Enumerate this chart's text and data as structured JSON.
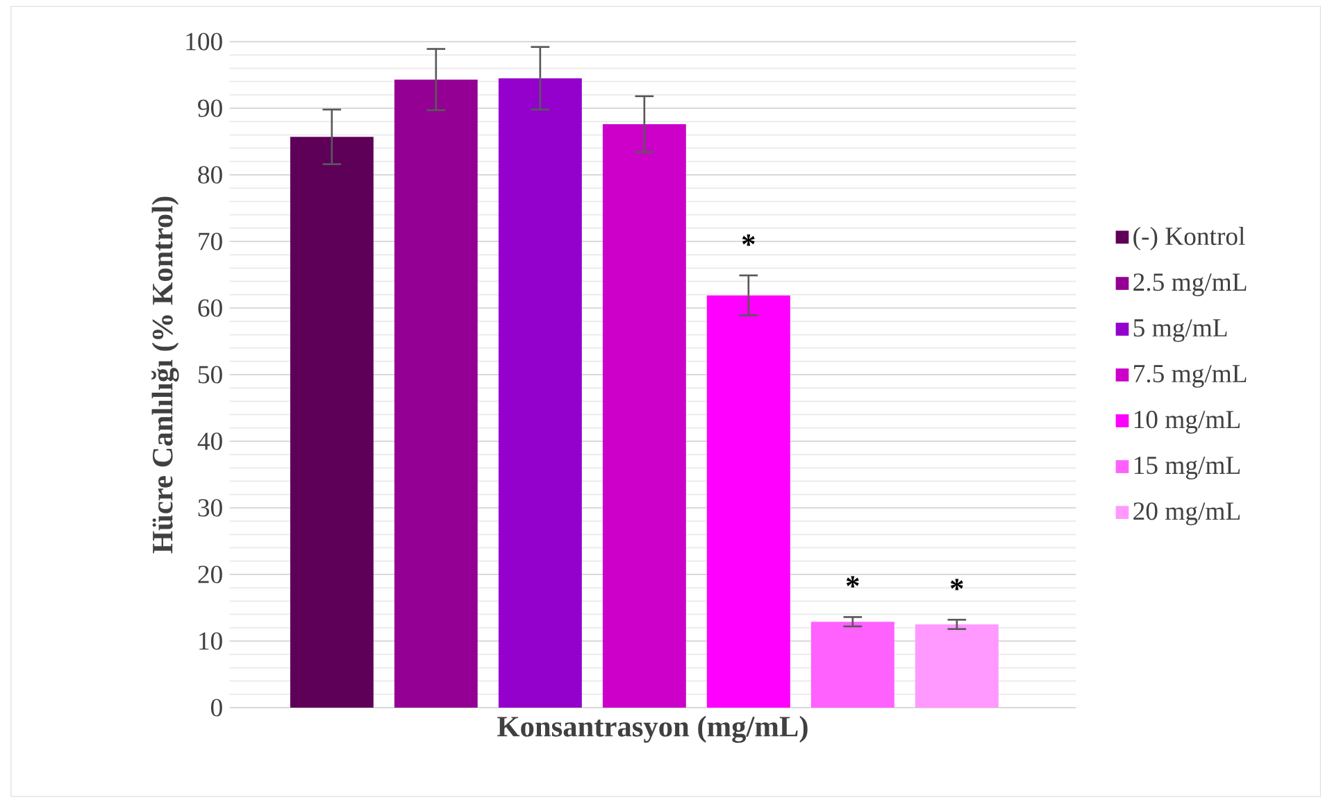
{
  "chart_data": {
    "type": "bar",
    "xlabel": "Konsantrasyon (mg/mL)",
    "ylabel": "Hücre Canlılığı (% Kontrol)",
    "categories": [
      null
    ],
    "series": [
      {
        "name": "(-) Kontrol",
        "color": "#5e0058",
        "values": [
          85.7
        ],
        "errors": [
          4.1
        ]
      },
      {
        "name": "2.5 mg/mL",
        "color": "#940094",
        "values": [
          94.3
        ],
        "errors": [
          4.6
        ]
      },
      {
        "name": "5 mg/mL",
        "color": "#9400cc",
        "values": [
          94.5
        ],
        "errors": [
          4.7
        ]
      },
      {
        "name": "7.5 mg/mL",
        "color": "#cc00c8",
        "values": [
          87.6
        ],
        "errors": [
          4.2
        ]
      },
      {
        "name": "10 mg/mL",
        "color": "#ff00ff",
        "values": [
          61.9
        ],
        "errors": [
          3.0
        ],
        "value_labels": [
          "*"
        ]
      },
      {
        "name": "15 mg/mL",
        "color": "#ff61ff",
        "values": [
          12.9
        ],
        "errors": [
          0.7
        ],
        "value_labels": [
          "*"
        ]
      },
      {
        "name": "20 mg/mL",
        "color": "#ff99ff",
        "values": [
          12.5
        ],
        "errors": [
          0.7
        ],
        "value_labels": [
          "*"
        ]
      }
    ],
    "ylim": [
      0,
      100
    ],
    "yticks": [
      0,
      10,
      20,
      30,
      40,
      50,
      60,
      70,
      80,
      90,
      100
    ],
    "grid": "y",
    "legend": "right"
  }
}
